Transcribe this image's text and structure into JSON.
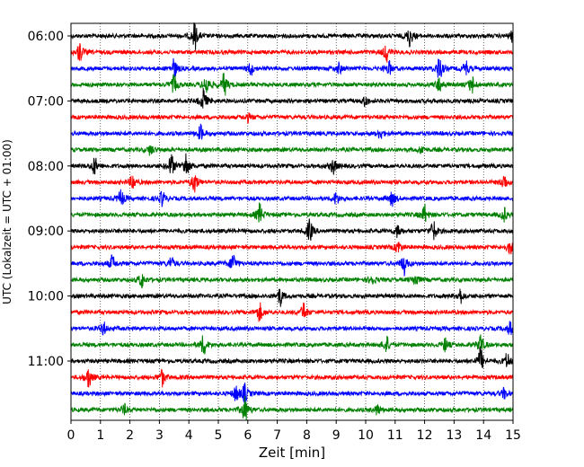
{
  "chart_data": {
    "type": "line",
    "xlabel": "Zeit  [min]",
    "ylabel": "UTC (Lokalzeit = UTC + 01:00)",
    "xlim": [
      0,
      15
    ],
    "x_ticks": [
      "0",
      "1",
      "2",
      "3",
      "4",
      "5",
      "6",
      "7",
      "8",
      "9",
      "10",
      "11",
      "12",
      "13",
      "14",
      "15"
    ],
    "y_ticks": [
      "06:00",
      "07:00",
      "08:00",
      "09:00",
      "10:00",
      "11:00"
    ],
    "grid": "vertical dotted lines at each minute",
    "trace_colors": [
      "#000000",
      "#ff0000",
      "#0000ff",
      "#008000"
    ],
    "traces": [
      {
        "start": "06:00",
        "bursts": [
          {
            "t": 4.2,
            "a": 1.0
          },
          {
            "t": 11.5,
            "a": 0.8
          },
          {
            "t": 15.0,
            "a": 0.5
          }
        ]
      },
      {
        "start": "06:15",
        "bursts": [
          {
            "t": 0.3,
            "a": 0.8
          },
          {
            "t": 10.7,
            "a": 0.7
          }
        ]
      },
      {
        "start": "06:30",
        "bursts": [
          {
            "t": 3.5,
            "a": 0.7
          },
          {
            "t": 6.1,
            "a": 0.5
          },
          {
            "t": 9.1,
            "a": 0.4
          },
          {
            "t": 10.8,
            "a": 0.5
          },
          {
            "t": 12.5,
            "a": 1.0
          },
          {
            "t": 13.4,
            "a": 0.6
          }
        ]
      },
      {
        "start": "06:45",
        "bursts": [
          {
            "t": 3.5,
            "a": 0.7
          },
          {
            "t": 4.6,
            "a": 0.8
          },
          {
            "t": 5.2,
            "a": 0.9
          },
          {
            "t": 12.5,
            "a": 0.6
          },
          {
            "t": 13.6,
            "a": 0.7
          }
        ]
      },
      {
        "start": "07:00",
        "bursts": [
          {
            "t": 4.5,
            "a": 0.9
          },
          {
            "t": 10.0,
            "a": 0.4
          }
        ]
      },
      {
        "start": "07:15",
        "bursts": [
          {
            "t": 6.0,
            "a": 0.3
          }
        ]
      },
      {
        "start": "07:30",
        "bursts": [
          {
            "t": 4.4,
            "a": 0.6
          },
          {
            "t": 10.5,
            "a": 0.4
          }
        ]
      },
      {
        "start": "07:45",
        "bursts": [
          {
            "t": 2.7,
            "a": 0.4
          },
          {
            "t": 11.9,
            "a": 0.3
          }
        ]
      },
      {
        "start": "08:00",
        "bursts": [
          {
            "t": 0.8,
            "a": 0.7
          },
          {
            "t": 3.4,
            "a": 0.9
          },
          {
            "t": 3.9,
            "a": 1.0
          },
          {
            "t": 8.9,
            "a": 0.6
          }
        ]
      },
      {
        "start": "08:15",
        "bursts": [
          {
            "t": 2.1,
            "a": 0.6
          },
          {
            "t": 4.2,
            "a": 0.8
          },
          {
            "t": 14.7,
            "a": 0.6
          }
        ]
      },
      {
        "start": "08:30",
        "bursts": [
          {
            "t": 1.7,
            "a": 0.7
          },
          {
            "t": 3.1,
            "a": 0.6
          },
          {
            "t": 9.0,
            "a": 0.5
          },
          {
            "t": 10.9,
            "a": 0.6
          }
        ]
      },
      {
        "start": "08:45",
        "bursts": [
          {
            "t": 6.4,
            "a": 0.8
          },
          {
            "t": 12.0,
            "a": 0.7
          },
          {
            "t": 14.7,
            "a": 0.5
          }
        ]
      },
      {
        "start": "09:00",
        "bursts": [
          {
            "t": 8.1,
            "a": 0.9
          },
          {
            "t": 11.1,
            "a": 0.5
          },
          {
            "t": 12.3,
            "a": 0.8
          }
        ]
      },
      {
        "start": "09:15",
        "bursts": [
          {
            "t": 11.1,
            "a": 0.5
          },
          {
            "t": 14.9,
            "a": 0.5
          }
        ]
      },
      {
        "start": "09:30",
        "bursts": [
          {
            "t": 1.4,
            "a": 0.6
          },
          {
            "t": 3.4,
            "a": 0.5
          },
          {
            "t": 5.5,
            "a": 0.8
          },
          {
            "t": 11.3,
            "a": 0.8
          }
        ]
      },
      {
        "start": "09:45",
        "bursts": [
          {
            "t": 2.4,
            "a": 0.6
          },
          {
            "t": 10.2,
            "a": 0.4
          },
          {
            "t": 11.7,
            "a": 0.5
          }
        ]
      },
      {
        "start": "10:00",
        "bursts": [
          {
            "t": 7.1,
            "a": 0.7
          },
          {
            "t": 13.2,
            "a": 0.6
          }
        ]
      },
      {
        "start": "10:15",
        "bursts": [
          {
            "t": 6.4,
            "a": 0.7
          },
          {
            "t": 7.9,
            "a": 0.7
          }
        ]
      },
      {
        "start": "10:30",
        "bursts": [
          {
            "t": 1.1,
            "a": 0.5
          },
          {
            "t": 14.9,
            "a": 0.5
          }
        ]
      },
      {
        "start": "10:45",
        "bursts": [
          {
            "t": 4.5,
            "a": 0.8
          },
          {
            "t": 10.7,
            "a": 0.7
          },
          {
            "t": 12.7,
            "a": 0.5
          },
          {
            "t": 13.9,
            "a": 0.8
          }
        ]
      },
      {
        "start": "11:00",
        "bursts": [
          {
            "t": 13.9,
            "a": 1.0
          },
          {
            "t": 14.8,
            "a": 0.6
          }
        ]
      },
      {
        "start": "11:15",
        "bursts": [
          {
            "t": 0.6,
            "a": 0.8
          },
          {
            "t": 3.1,
            "a": 0.6
          }
        ]
      },
      {
        "start": "11:30",
        "bursts": [
          {
            "t": 5.6,
            "a": 0.6
          },
          {
            "t": 5.9,
            "a": 0.7
          },
          {
            "t": 14.7,
            "a": 0.4
          }
        ]
      },
      {
        "start": "11:45",
        "bursts": [
          {
            "t": 1.8,
            "a": 0.4
          },
          {
            "t": 5.9,
            "a": 1.0
          },
          {
            "t": 10.4,
            "a": 0.4
          }
        ]
      }
    ]
  }
}
